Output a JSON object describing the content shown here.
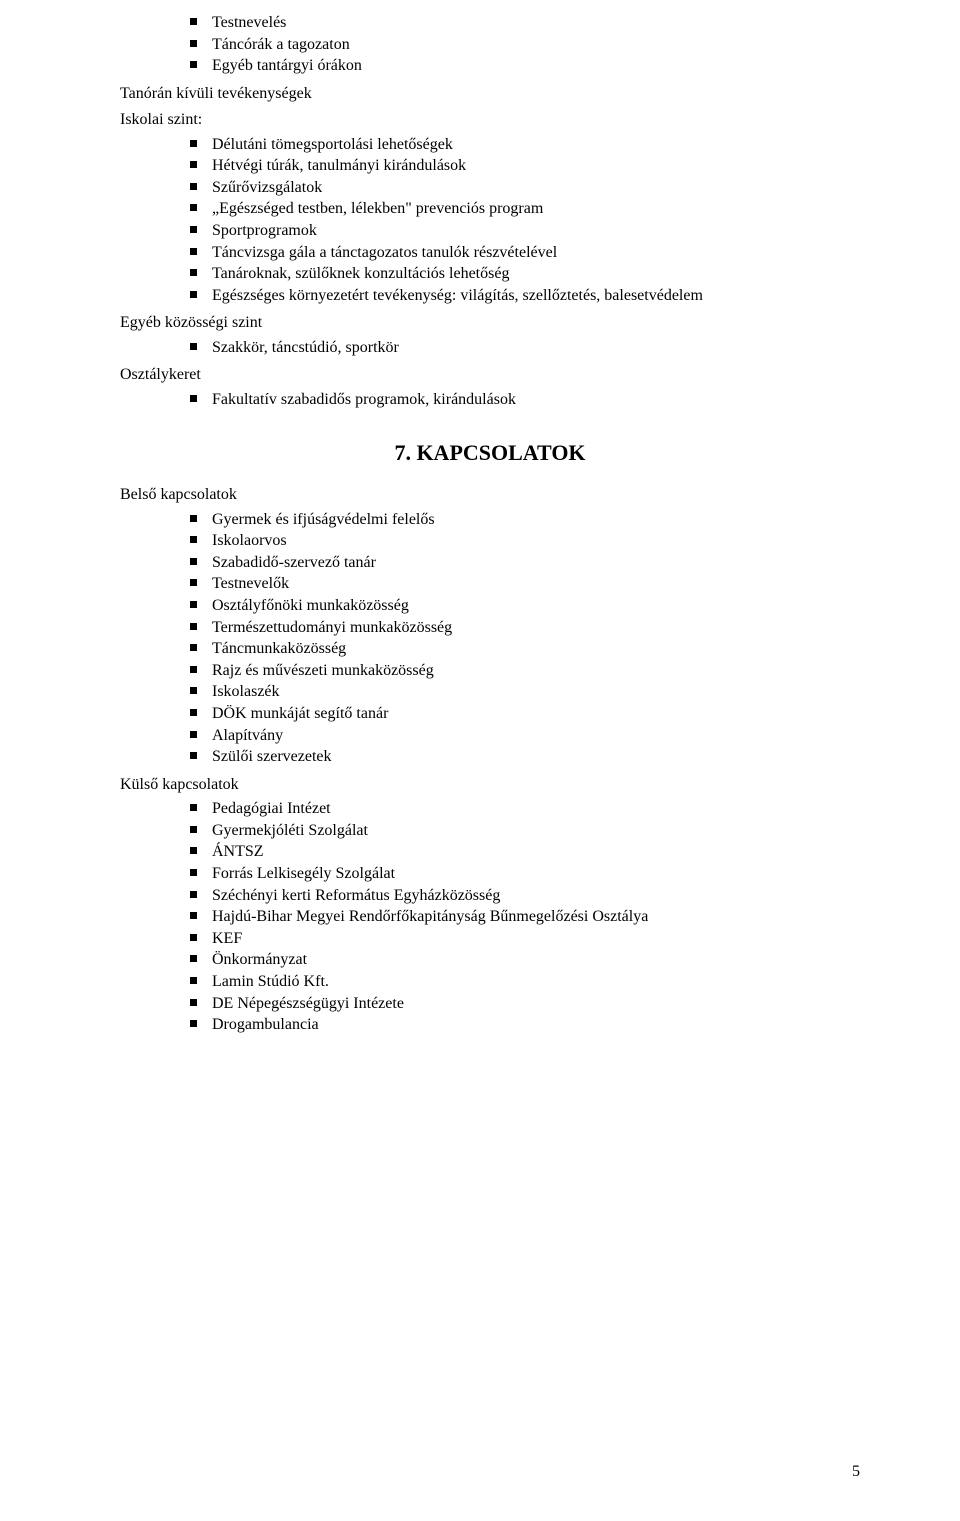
{
  "page_number": "5",
  "colors": {
    "text": "#000000",
    "background": "#ffffff",
    "bullet": "#000000"
  },
  "typography": {
    "body_font": "Times New Roman",
    "body_size_pt": 12,
    "heading_size_pt": 17,
    "heading_weight": "bold"
  },
  "blocks": [
    {
      "type": "list",
      "items": [
        "Testnevelés",
        "Táncórák a tagozaton",
        "Egyéb tantárgyi órákon"
      ]
    },
    {
      "type": "subhead",
      "text": "Tanórán kívüli tevékenységek"
    },
    {
      "type": "subhead",
      "text": "Iskolai szint:"
    },
    {
      "type": "list",
      "items": [
        "Délutáni tömegsportolási lehetőségek",
        "Hétvégi túrák, tanulmányi kirándulások",
        "Szűrővizsgálatok",
        "„Egészséged testben, lélekben\" prevenciós program",
        "Sportprogramok",
        "Táncvizsga gála a tánctagozatos tanulók részvételével",
        "Tanároknak, szülőknek konzultációs lehetőség",
        "Egészséges környezetért tevékenység: világítás, szellőztetés, balesetvédelem"
      ]
    },
    {
      "type": "subhead",
      "text": "Egyéb közösségi szint"
    },
    {
      "type": "list",
      "items": [
        "Szakkör, táncstúdió, sportkör"
      ]
    },
    {
      "type": "subhead",
      "text": "Osztálykeret"
    },
    {
      "type": "list",
      "items": [
        "Fakultatív szabadidős programok, kirándulások"
      ]
    }
  ],
  "section7": {
    "number": "7.",
    "title": "KAPCSOLATOK",
    "groups": [
      {
        "heading": "Belső kapcsolatok",
        "items": [
          "Gyermek és ifjúságvédelmi felelős",
          "Iskolaorvos",
          "Szabadidő-szervező tanár",
          "Testnevelők",
          "Osztályfőnöki munkaközösség",
          "Természettudományi munkaközösség",
          "Táncmunkaközösség",
          "Rajz és művészeti munkaközösség",
          "Iskolaszék",
          "DÖK munkáját segítő tanár",
          "Alapítvány",
          "Szülői szervezetek"
        ]
      },
      {
        "heading": "Külső kapcsolatok",
        "items": [
          "Pedagógiai Intézet",
          "Gyermekjóléti Szolgálat",
          "ÁNTSZ",
          "Forrás Lelkisegély Szolgálat",
          "Széchényi kerti Református Egyházközösség",
          "Hajdú-Bihar Megyei Rendőrfőkapitányság Bűnmegelőzési Osztálya",
          "KEF",
          "Önkormányzat",
          "Lamin Stúdió Kft.",
          "DE Népegészségügyi Intézete",
          "Drogambulancia"
        ]
      }
    ]
  }
}
